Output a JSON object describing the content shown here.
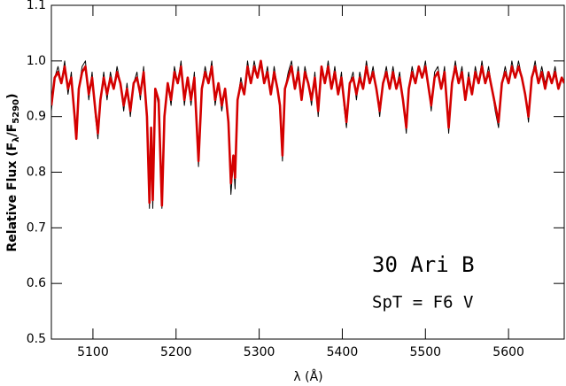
{
  "chart_data": {
    "type": "line",
    "xlabel": "λ (Å)",
    "ylabel": [
      "Relative Flux (F",
      "λ",
      "/F",
      "5290",
      ")"
    ],
    "annotations": [
      "30 Ari B",
      "SpT = F6 V"
    ],
    "xlim": [
      5050,
      5667
    ],
    "ylim": [
      0.5,
      1.1
    ],
    "xticks": [
      5100,
      5200,
      5300,
      5400,
      5500,
      5600
    ],
    "yticks": [
      0.5,
      0.6,
      0.7,
      0.8,
      0.9,
      {
        "value": 1,
        "label": "1.0"
      },
      1.1
    ],
    "x": [
      5050,
      5054,
      5058,
      5062,
      5066,
      5070,
      5074,
      5078,
      5080,
      5083,
      5087,
      5091,
      5095,
      5099,
      5103,
      5106,
      5109,
      5113,
      5117,
      5121,
      5125,
      5129,
      5133,
      5137,
      5141,
      5145,
      5149,
      5153,
      5157,
      5161,
      5165,
      5168,
      5170,
      5172,
      5175,
      5179,
      5183,
      5186,
      5190,
      5194,
      5198,
      5202,
      5206,
      5210,
      5214,
      5218,
      5222,
      5227,
      5231,
      5235,
      5239,
      5243,
      5247,
      5251,
      5255,
      5259,
      5263,
      5266,
      5269,
      5271,
      5274,
      5278,
      5282,
      5286,
      5290,
      5294,
      5298,
      5302,
      5306,
      5310,
      5314,
      5318,
      5322,
      5325,
      5328,
      5331,
      5335,
      5339,
      5343,
      5347,
      5351,
      5355,
      5359,
      5363,
      5367,
      5371,
      5375,
      5379,
      5383,
      5387,
      5391,
      5395,
      5399,
      5402,
      5405,
      5409,
      5413,
      5417,
      5421,
      5425,
      5429,
      5433,
      5437,
      5441,
      5445,
      5449,
      5453,
      5457,
      5461,
      5465,
      5469,
      5473,
      5477,
      5480,
      5484,
      5488,
      5492,
      5496,
      5500,
      5504,
      5507,
      5511,
      5515,
      5519,
      5523,
      5528,
      5532,
      5536,
      5540,
      5544,
      5548,
      5552,
      5556,
      5560,
      5564,
      5568,
      5572,
      5576,
      5580,
      5584,
      5588,
      5592,
      5596,
      5600,
      5604,
      5608,
      5612,
      5616,
      5620,
      5624,
      5628,
      5632,
      5636,
      5640,
      5644,
      5648,
      5652,
      5656,
      5660,
      5664,
      5667
    ],
    "series": [
      {
        "color": "#000000",
        "values": [
          0.91,
          0.97,
          0.99,
          0.96,
          1.0,
          0.94,
          0.98,
          0.89,
          0.86,
          0.95,
          0.99,
          1.0,
          0.93,
          0.98,
          0.9,
          0.86,
          0.93,
          0.98,
          0.93,
          0.98,
          0.95,
          0.99,
          0.96,
          0.91,
          0.96,
          0.9,
          0.96,
          0.98,
          0.93,
          0.99,
          0.89,
          0.735,
          0.88,
          0.735,
          0.95,
          0.92,
          0.735,
          0.9,
          0.96,
          0.92,
          0.99,
          0.96,
          1.0,
          0.92,
          0.97,
          0.92,
          0.98,
          0.81,
          0.95,
          0.99,
          0.96,
          1.0,
          0.92,
          0.96,
          0.91,
          0.95,
          0.88,
          0.76,
          0.82,
          0.77,
          0.93,
          0.97,
          0.94,
          1.0,
          0.96,
          1.0,
          0.97,
          1.0,
          0.96,
          0.99,
          0.94,
          0.99,
          0.95,
          0.92,
          0.82,
          0.95,
          0.98,
          1.0,
          0.95,
          0.99,
          0.93,
          0.99,
          0.96,
          0.92,
          0.98,
          0.9,
          0.99,
          0.96,
          1.0,
          0.95,
          0.99,
          0.94,
          0.98,
          0.92,
          0.88,
          0.96,
          0.98,
          0.93,
          0.98,
          0.95,
          1.0,
          0.96,
          0.99,
          0.95,
          0.9,
          0.96,
          0.99,
          0.95,
          0.99,
          0.95,
          0.98,
          0.93,
          0.87,
          0.95,
          0.99,
          0.96,
          0.99,
          0.97,
          1.0,
          0.95,
          0.91,
          0.98,
          0.99,
          0.95,
          0.99,
          0.87,
          0.96,
          1.0,
          0.96,
          0.99,
          0.93,
          0.98,
          0.94,
          0.99,
          0.96,
          1.0,
          0.96,
          0.99,
          0.95,
          0.91,
          0.88,
          0.96,
          0.99,
          0.96,
          1.0,
          0.97,
          1.0,
          0.97,
          0.94,
          0.89,
          0.97,
          1.0,
          0.96,
          0.99,
          0.96,
          0.98,
          0.96,
          0.99,
          0.95,
          0.97,
          0.96
        ]
      },
      {
        "color": "#d40000",
        "values": [
          0.92,
          0.97,
          0.98,
          0.96,
          0.99,
          0.95,
          0.97,
          0.9,
          0.86,
          0.95,
          0.98,
          0.99,
          0.94,
          0.97,
          0.91,
          0.87,
          0.93,
          0.97,
          0.94,
          0.97,
          0.95,
          0.98,
          0.96,
          0.92,
          0.95,
          0.91,
          0.96,
          0.97,
          0.94,
          0.98,
          0.9,
          0.745,
          0.88,
          0.75,
          0.95,
          0.93,
          0.74,
          0.9,
          0.96,
          0.93,
          0.98,
          0.96,
          0.99,
          0.93,
          0.97,
          0.93,
          0.97,
          0.82,
          0.95,
          0.98,
          0.96,
          0.99,
          0.93,
          0.96,
          0.92,
          0.95,
          0.89,
          0.78,
          0.83,
          0.79,
          0.93,
          0.96,
          0.94,
          0.99,
          0.96,
          0.99,
          0.97,
          1.0,
          0.96,
          0.98,
          0.94,
          0.98,
          0.95,
          0.92,
          0.83,
          0.95,
          0.97,
          0.99,
          0.95,
          0.98,
          0.93,
          0.98,
          0.96,
          0.93,
          0.97,
          0.91,
          0.99,
          0.96,
          0.99,
          0.95,
          0.98,
          0.94,
          0.97,
          0.93,
          0.89,
          0.96,
          0.97,
          0.94,
          0.97,
          0.95,
          0.99,
          0.96,
          0.98,
          0.95,
          0.91,
          0.96,
          0.98,
          0.95,
          0.98,
          0.95,
          0.97,
          0.93,
          0.88,
          0.95,
          0.98,
          0.96,
          0.99,
          0.97,
          0.99,
          0.95,
          0.92,
          0.97,
          0.98,
          0.95,
          0.98,
          0.88,
          0.96,
          0.99,
          0.96,
          0.98,
          0.93,
          0.97,
          0.94,
          0.98,
          0.96,
          0.99,
          0.96,
          0.98,
          0.95,
          0.92,
          0.89,
          0.96,
          0.98,
          0.96,
          0.99,
          0.97,
          0.99,
          0.97,
          0.94,
          0.9,
          0.97,
          0.99,
          0.96,
          0.98,
          0.95,
          0.98,
          0.96,
          0.98,
          0.95,
          0.97,
          0.96
        ]
      }
    ]
  }
}
